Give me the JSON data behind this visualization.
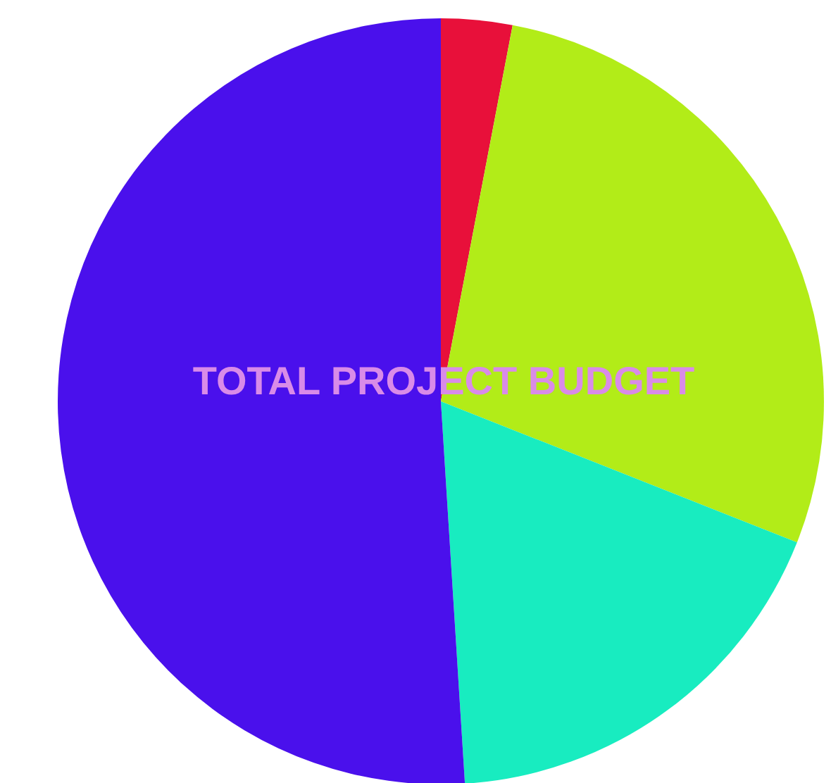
{
  "chart_data": {
    "type": "pie",
    "title": "TOTAL PROJECT BUDGET",
    "categories": [
      null,
      null,
      null,
      null
    ],
    "values": [
      3,
      28,
      18,
      51
    ],
    "colors": [
      "#e8103a",
      "#b2ec18",
      "#18ecc0",
      "#4a10ec"
    ],
    "legend": false
  }
}
